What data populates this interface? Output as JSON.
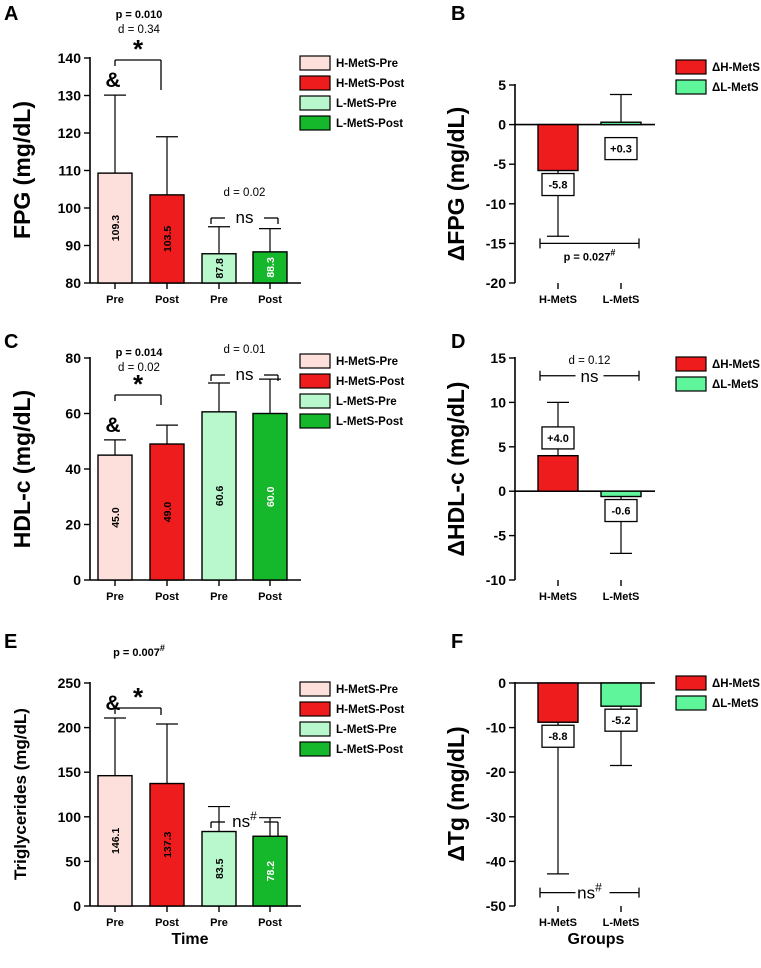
{
  "colors": {
    "h_pre": "#fde0dc",
    "h_post": "#ee1c1c",
    "l_pre": "#b9f7cc",
    "l_post": "#16b82b",
    "delta_h": "#ee1c1c",
    "delta_l": "#5ef59b",
    "axis": "#000000"
  },
  "chart_data": [
    {
      "id": "A",
      "letter": "A",
      "type": "bar",
      "variant": "grouped",
      "ylabel": "FPG (mg/dL)",
      "ylabel_size": "big",
      "ylim": [
        80,
        140
      ],
      "yticks": [
        80,
        90,
        100,
        110,
        120,
        130,
        140
      ],
      "categories": [
        "Pre",
        "Post",
        "Pre",
        "Post"
      ],
      "xlabel": "",
      "values": [
        109.3,
        103.5,
        87.8,
        88.3
      ],
      "value_labels": [
        "109.3",
        "103.5",
        "87.8",
        "88.3"
      ],
      "errors": [
        20.8,
        15.5,
        7.2,
        6.2
      ],
      "legend": [
        "H-MetS-Pre",
        "H-MetS-Post",
        "L-MetS-Pre",
        "L-MetS-Post"
      ],
      "annotations": {
        "left_p": "p = 0.010",
        "left_d": "d = 0.34",
        "left_star": "*",
        "amp": "&",
        "right_d": "d = 0.02",
        "right_ns": "ns"
      }
    },
    {
      "id": "B",
      "letter": "B",
      "type": "bar",
      "variant": "delta",
      "ylabel": "ΔFPG (mg/dL)",
      "ylabel_size": "big",
      "ylim": [
        -20,
        5
      ],
      "yticks": [
        -20,
        -15,
        -10,
        -5,
        0,
        5
      ],
      "categories": [
        "H-MetS",
        "L-MetS"
      ],
      "xlabel": "",
      "values": [
        -5.8,
        0.3
      ],
      "value_labels": [
        "-5.8",
        "+0.3"
      ],
      "errors": [
        8.3,
        3.5
      ],
      "legend": [
        "ΔH-MetS",
        "ΔL-MetS"
      ],
      "annotations": {
        "text": "p = 0.027",
        "sup": "#",
        "bracket_y": -15
      }
    },
    {
      "id": "C",
      "letter": "C",
      "type": "bar",
      "variant": "grouped",
      "ylabel": "HDL-c (mg/dL)",
      "ylabel_size": "big",
      "ylim": [
        0,
        80
      ],
      "yticks": [
        0,
        20,
        40,
        60,
        80
      ],
      "categories": [
        "Pre",
        "Post",
        "Pre",
        "Post"
      ],
      "xlabel": "",
      "values": [
        45.0,
        49.0,
        60.6,
        60.0
      ],
      "value_labels": [
        "45.0",
        "49.0",
        "60.6",
        "60.0"
      ],
      "errors": [
        5.5,
        6.8,
        10.4,
        12.4
      ],
      "legend": [
        "H-MetS-Pre",
        "H-MetS-Post",
        "L-MetS-Pre",
        "L-MetS-Post"
      ],
      "annotations": {
        "left_p": "p = 0.014",
        "left_d": "d = 0.02",
        "left_star": "*",
        "amp": "&",
        "right_d": "d = 0.01",
        "right_ns": "ns"
      }
    },
    {
      "id": "D",
      "letter": "D",
      "type": "bar",
      "variant": "delta",
      "ylabel": "ΔHDL-c (mg/dL)",
      "ylabel_size": "big",
      "ylim": [
        -10,
        15
      ],
      "yticks": [
        -10,
        -5,
        0,
        5,
        10,
        15
      ],
      "categories": [
        "H-MetS",
        "L-MetS"
      ],
      "xlabel": "",
      "values": [
        4.0,
        -0.6
      ],
      "value_labels": [
        "+4.0",
        "-0.6"
      ],
      "errors": [
        6.0,
        6.4
      ],
      "legend": [
        "ΔH-MetS",
        "ΔL-MetS"
      ],
      "annotations": {
        "text": "d = 0.12",
        "ns": "ns",
        "bracket_y": 13
      }
    },
    {
      "id": "E",
      "letter": "E",
      "type": "bar",
      "variant": "grouped",
      "ylabel": "Triglycerides (mg/dL)",
      "ylabel_size": "small",
      "ylim": [
        0,
        250
      ],
      "yticks": [
        0,
        50,
        100,
        150,
        200,
        250
      ],
      "categories": [
        "Pre",
        "Post",
        "Pre",
        "Post"
      ],
      "xlabel": "Time",
      "values": [
        146.1,
        137.3,
        83.5,
        78.2
      ],
      "value_labels": [
        "146.1",
        "137.3",
        "83.5",
        "78.2"
      ],
      "errors": [
        64.7,
        66.7,
        28.0,
        20.8
      ],
      "legend": [
        "H-MetS-Pre",
        "H-MetS-Post",
        "L-MetS-Pre",
        "L-MetS-Post"
      ],
      "annotations": {
        "left_p": "p = 0.007",
        "left_p_sup": "#",
        "left_star": "*",
        "amp": "&",
        "right_ns": "ns",
        "right_ns_sup": "#"
      }
    },
    {
      "id": "F",
      "letter": "F",
      "type": "bar",
      "variant": "delta",
      "ylabel": "ΔTg (mg/dL)",
      "ylabel_size": "big",
      "ylim": [
        -50,
        0
      ],
      "yticks": [
        -50,
        -40,
        -30,
        -20,
        -10,
        0
      ],
      "categories": [
        "H-MetS",
        "L-MetS"
      ],
      "xlabel": "Groups",
      "values": [
        -8.8,
        -5.2
      ],
      "value_labels": [
        "-8.8",
        "-5.2"
      ],
      "errors": [
        34.0,
        13.3
      ],
      "legend": [
        "ΔH-MetS",
        "ΔL-MetS"
      ],
      "annotations": {
        "ns": "ns",
        "sup": "#",
        "bracket_y": -47
      }
    }
  ]
}
